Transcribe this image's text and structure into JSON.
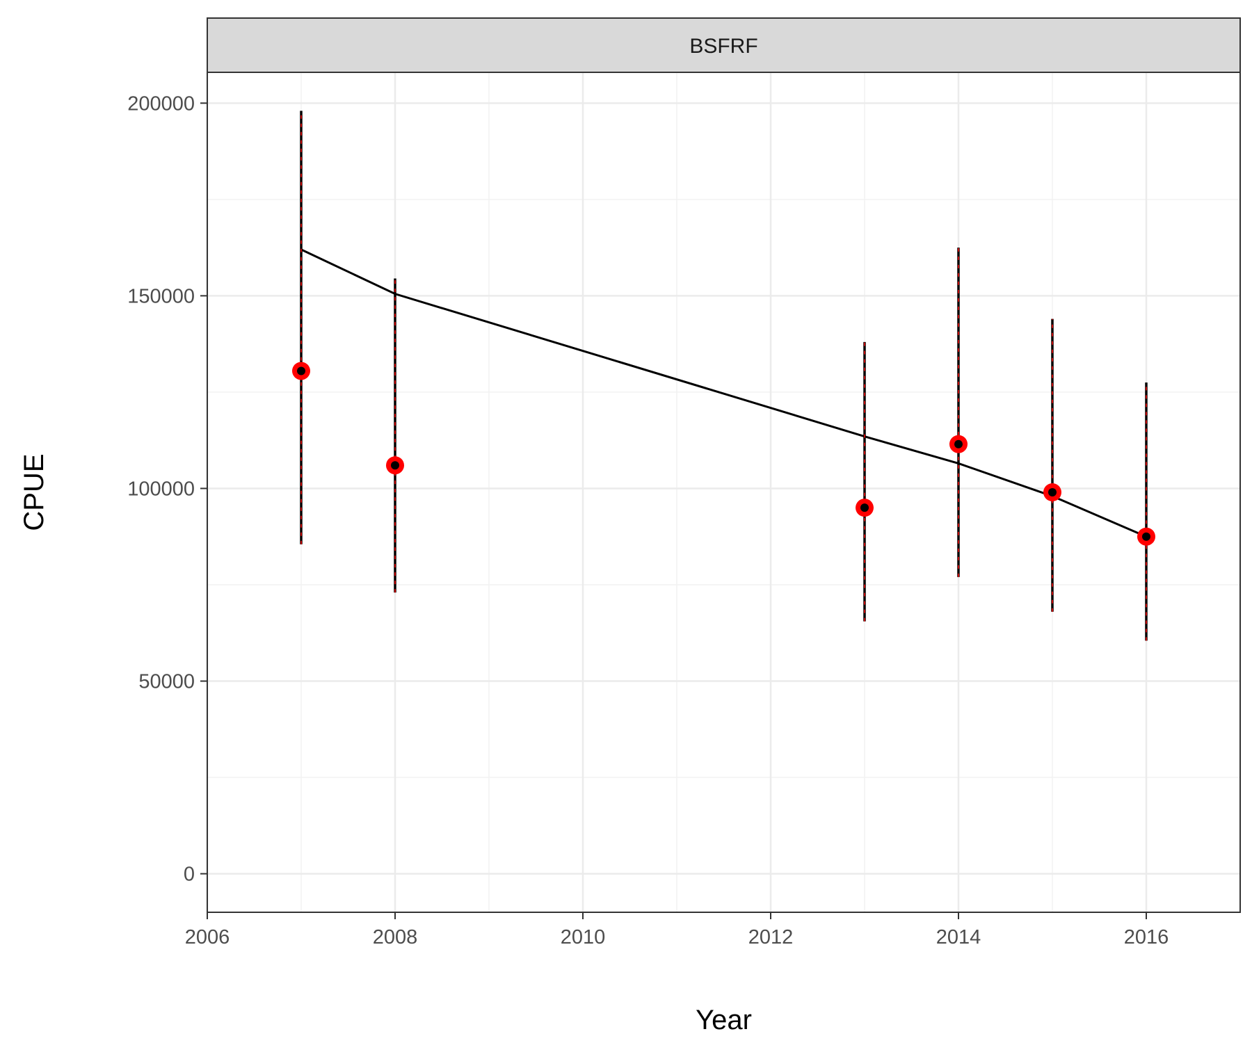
{
  "chart_data": {
    "type": "scatter",
    "facet_label": "BSFRF",
    "xlabel": "Year",
    "ylabel": "CPUE",
    "xlim": [
      2006,
      2017
    ],
    "ylim": [
      -10000,
      208000
    ],
    "x_ticks": [
      2006,
      2008,
      2010,
      2012,
      2014,
      2016
    ],
    "x_tick_labels": [
      "2006",
      "2008",
      "2010",
      "2012",
      "2014",
      "2016"
    ],
    "y_ticks": [
      0,
      50000,
      100000,
      150000,
      200000
    ],
    "y_tick_labels": [
      "0",
      "50000",
      "100000",
      "150000",
      "200000"
    ],
    "grid": true,
    "observed": {
      "x": [
        2007,
        2008,
        2013,
        2014,
        2015,
        2016
      ],
      "y": [
        130500,
        106000,
        95000,
        111500,
        99000,
        87500
      ],
      "lower": [
        85500,
        73000,
        65500,
        77000,
        68000,
        60500
      ],
      "upper": [
        198000,
        154500,
        138000,
        162500,
        144000,
        127500
      ]
    },
    "fitted": {
      "x": [
        2007,
        2008,
        2013,
        2014,
        2015,
        2016
      ],
      "y": [
        162000,
        150500,
        113500,
        106500,
        98000,
        87500
      ]
    },
    "colors": {
      "point_fill": "#ff0000",
      "point_center": "#000000",
      "errorbar": "#000000",
      "errorbar_dash": "#ff0000",
      "fit_line": "#000000",
      "strip_bg": "#d9d9d9",
      "grid_major": "#ebebeb",
      "grid_minor": "#f2f2f2"
    }
  }
}
